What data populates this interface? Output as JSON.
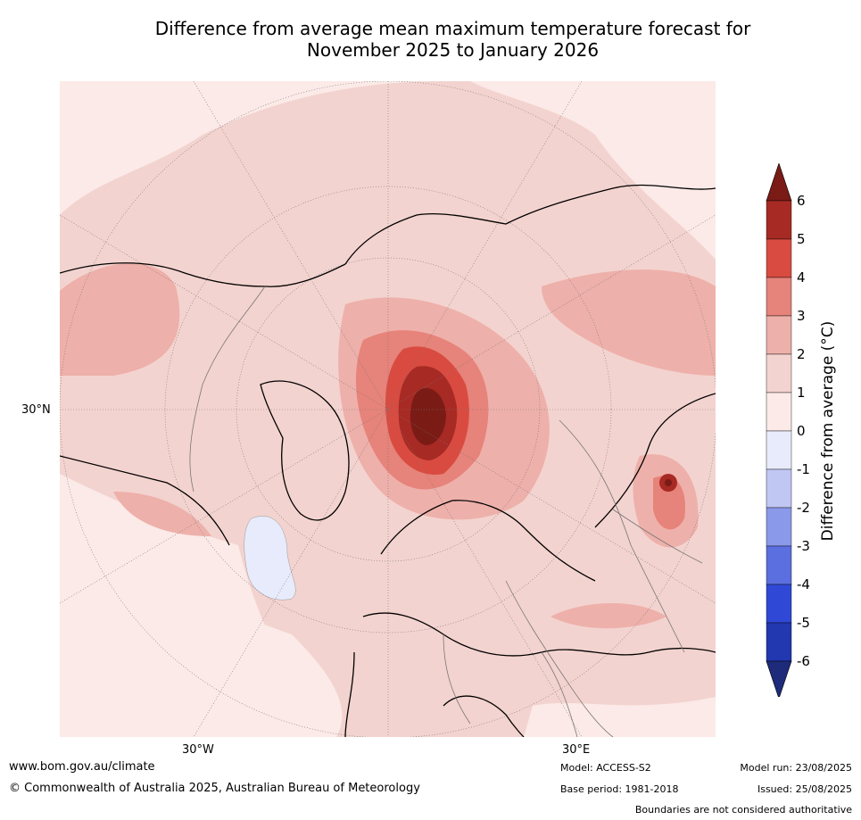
{
  "title": {
    "line1": "Difference from average mean maximum temperature forecast for",
    "line2": "November 2025 to January 2026"
  },
  "map": {
    "projection": "north polar stereographic",
    "labels": {
      "lat_30n": "30°N",
      "lon_30w": "30°W",
      "lon_30e": "30°E"
    }
  },
  "colorbar": {
    "label": "Difference from average (°C)",
    "ticks": [
      "6",
      "5",
      "4",
      "3",
      "2",
      "1",
      "0",
      "-1",
      "-2",
      "-3",
      "-4",
      "-5",
      "-6"
    ],
    "bands": [
      {
        "range": "above 6",
        "color": "#7a1b16"
      },
      {
        "range": "5 to 6",
        "color": "#a82a24"
      },
      {
        "range": "4 to 5",
        "color": "#d94b40"
      },
      {
        "range": "3 to 4",
        "color": "#e6837a"
      },
      {
        "range": "2 to 3",
        "color": "#eeb0aa"
      },
      {
        "range": "1 to 2",
        "color": "#f3d3cf"
      },
      {
        "range": "0 to 1",
        "color": "#fbeae7"
      },
      {
        "range": "-1 to 0",
        "color": "#e8ebfb"
      },
      {
        "range": "-2 to -1",
        "color": "#c0c7f2"
      },
      {
        "range": "-3 to -2",
        "color": "#8b99ea"
      },
      {
        "range": "-4 to -3",
        "color": "#5c6fe0"
      },
      {
        "range": "-5 to -4",
        "color": "#3048d6"
      },
      {
        "range": "-6 to -5",
        "color": "#2238b0"
      },
      {
        "range": "below -6",
        "color": "#1e2a7a"
      }
    ]
  },
  "footer": {
    "website": "www.bom.gov.au/climate",
    "copyright": "© Commonwealth of Australia 2025, Australian Bureau of Meteorology",
    "model": "Model: ACCESS-S2",
    "base_period": "Base period: 1981-2018",
    "model_run": "Model run: 23/08/2025",
    "issued": "Issued: 25/08/2025",
    "disclaimer": "Boundaries are not considered authoritative"
  }
}
